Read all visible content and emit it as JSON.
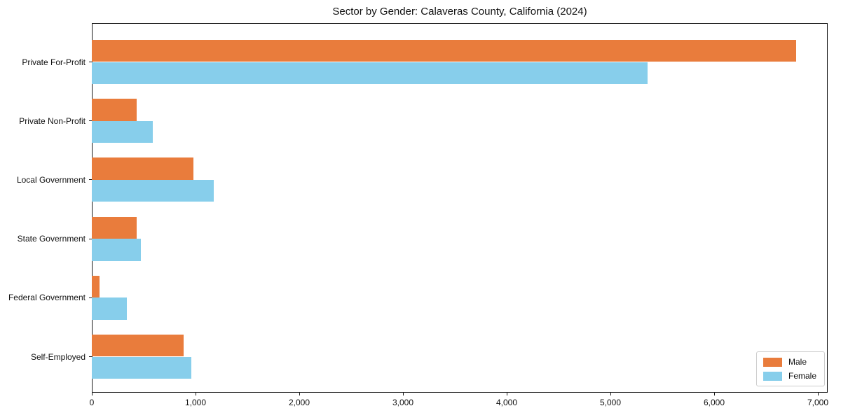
{
  "chart_data": {
    "type": "bar",
    "orientation": "horizontal",
    "title": "Sector by Gender: Calaveras County, California (2024)",
    "categories": [
      "Private For-Profit",
      "Private Non-Profit",
      "Local Government",
      "State Government",
      "Federal Government",
      "Self-Employed"
    ],
    "series": [
      {
        "name": "Male",
        "color": "#e97c3c",
        "values": [
          6790,
          435,
          980,
          435,
          75,
          885
        ]
      },
      {
        "name": "Female",
        "color": "#87ceeb",
        "values": [
          5360,
          590,
          1175,
          470,
          340,
          960
        ]
      }
    ],
    "xlim": [
      0,
      7000
    ],
    "x_ticks": [
      0,
      1000,
      2000,
      3000,
      4000,
      5000,
      6000,
      7000
    ],
    "x_tick_labels": [
      "0",
      "1,000",
      "2,000",
      "3,000",
      "4,000",
      "5,000",
      "6,000",
      "7,000"
    ],
    "xlabel": "",
    "ylabel": "",
    "grid": false,
    "legend": {
      "position": "lower right",
      "entries": [
        "Male",
        "Female"
      ]
    }
  }
}
